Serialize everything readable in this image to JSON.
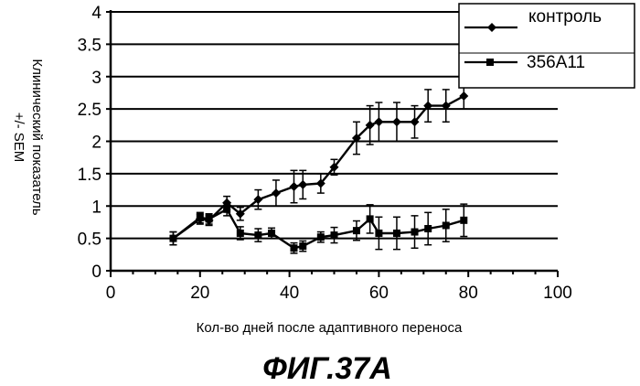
{
  "chart_data": {
    "type": "line",
    "xlabel": "Кол-во дней после адаптивного переноса",
    "ylabel_lines": [
      "Клинический показатель",
      "+/- SEM"
    ],
    "figure_caption": "ФИГ.37A",
    "xlim": [
      0,
      100
    ],
    "ylim": [
      0,
      4
    ],
    "x_ticks": [
      "0",
      "20",
      "40",
      "60",
      "80",
      "100"
    ],
    "y_ticks": [
      "0",
      "0.5",
      "1",
      "1.5",
      "2",
      "2.5",
      "3",
      "3.5",
      "4"
    ],
    "x_tick_values": [
      0,
      20,
      40,
      60,
      80,
      100
    ],
    "y_tick_values": [
      0,
      0.5,
      1,
      1.5,
      2,
      2.5,
      3,
      3.5,
      4
    ],
    "grid": "horizontal",
    "legend_placement": "top-right",
    "series": [
      {
        "name": "контроль",
        "marker": "diamond",
        "x": [
          14,
          20,
          22,
          26,
          29,
          33,
          37,
          41,
          43,
          47,
          50,
          55,
          58,
          60,
          64,
          68,
          71,
          75,
          79
        ],
        "y": [
          0.5,
          0.8,
          0.78,
          1.05,
          0.88,
          1.1,
          1.2,
          1.3,
          1.33,
          1.35,
          1.6,
          2.05,
          2.25,
          2.3,
          2.3,
          2.3,
          2.55,
          2.55,
          2.7
        ],
        "error": [
          0.1,
          0.08,
          0.08,
          0.1,
          0.1,
          0.15,
          0.2,
          0.25,
          0.22,
          0.15,
          0.12,
          0.25,
          0.3,
          0.3,
          0.3,
          0.25,
          0.25,
          0.25,
          0.2
        ]
      },
      {
        "name": "356A11",
        "marker": "square",
        "x": [
          14,
          20,
          22,
          26,
          29,
          33,
          36,
          41,
          43,
          47,
          50,
          55,
          58,
          60,
          64,
          68,
          71,
          75,
          79
        ],
        "y": [
          0.5,
          0.82,
          0.8,
          0.95,
          0.58,
          0.55,
          0.58,
          0.35,
          0.38,
          0.52,
          0.55,
          0.62,
          0.8,
          0.58,
          0.58,
          0.6,
          0.65,
          0.7,
          0.78
        ],
        "error": [
          0.1,
          0.08,
          0.08,
          0.1,
          0.1,
          0.1,
          0.08,
          0.08,
          0.08,
          0.08,
          0.12,
          0.15,
          0.22,
          0.25,
          0.25,
          0.25,
          0.25,
          0.25,
          0.25
        ]
      }
    ]
  }
}
